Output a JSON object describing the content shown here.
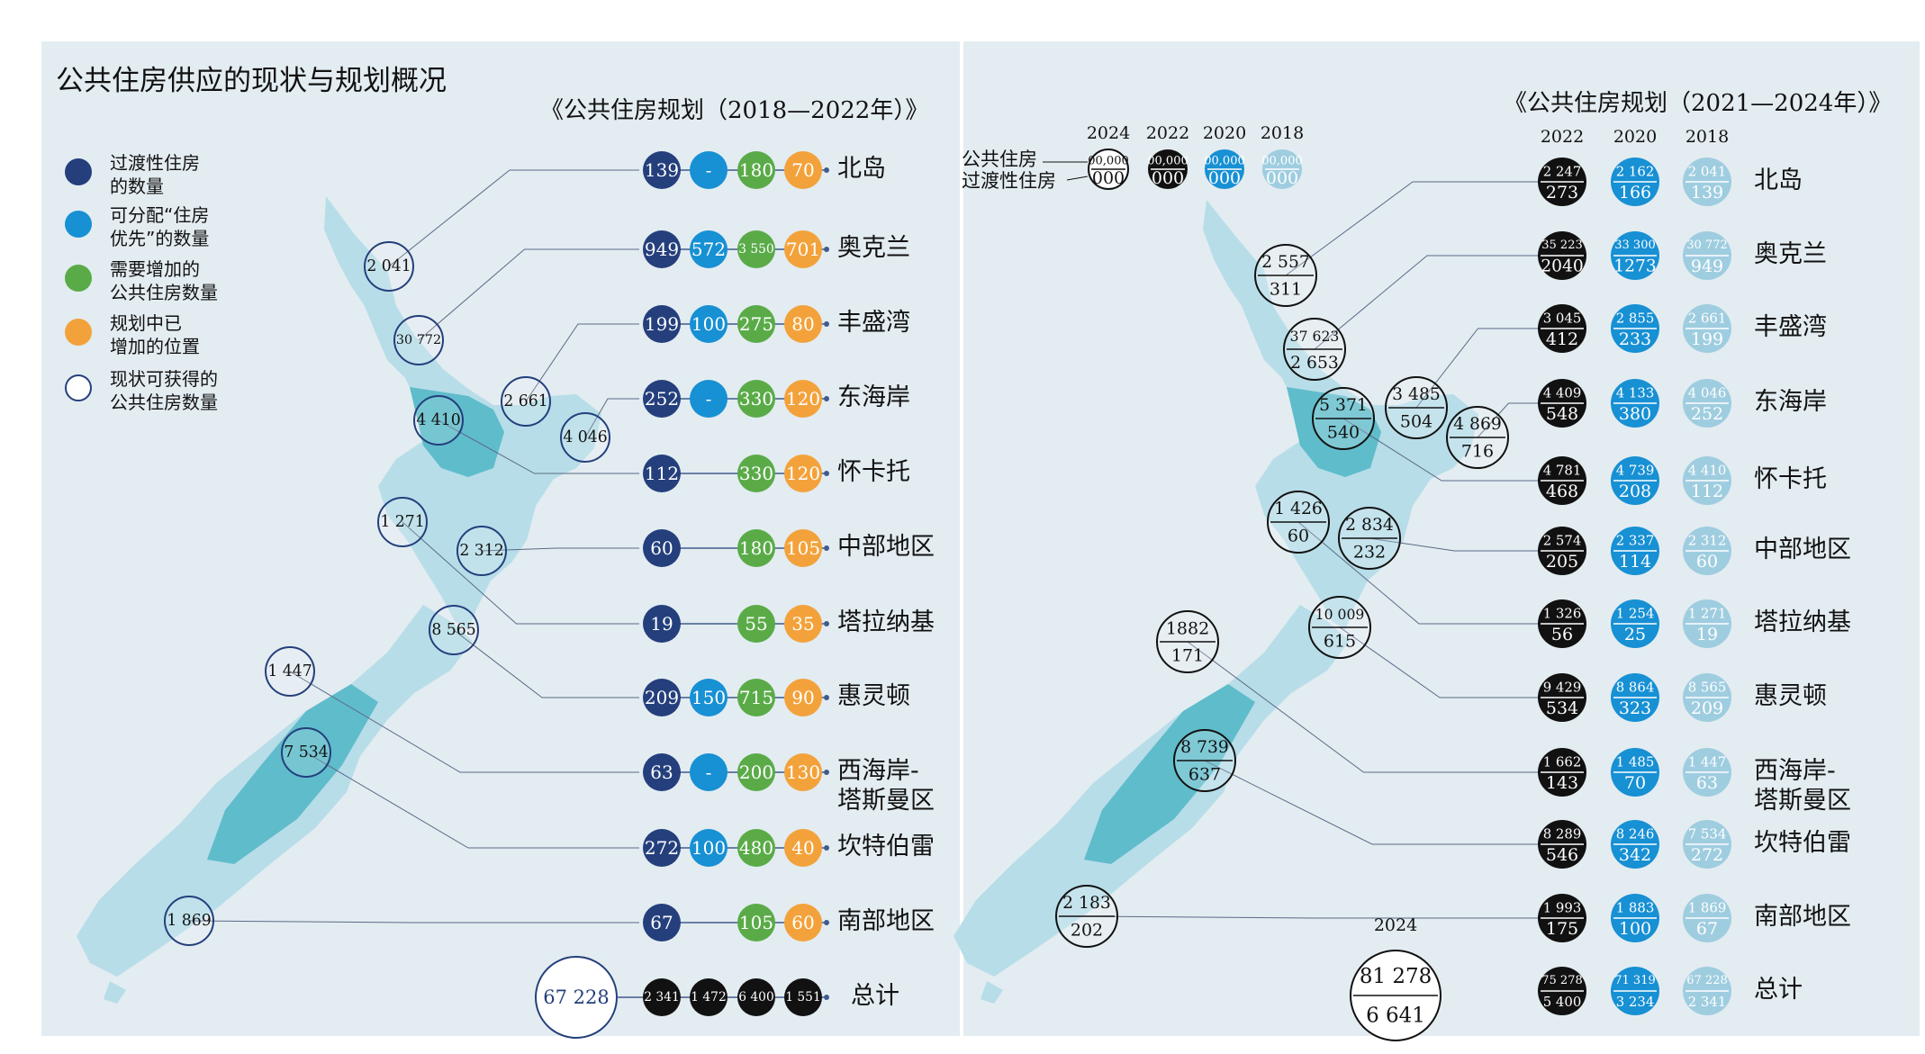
{
  "title": "公共住房供应的现状与规划概况",
  "colors": {
    "transitional": "#243f7c",
    "priority": "#1790d4",
    "needed": "#5aab48",
    "planned": "#f3a23b",
    "current_ring": "#243f7c",
    "black": "#111111",
    "light_blue": "#9fcde0",
    "map_light": "#b7dde8",
    "map_dark": "#5fbccb"
  },
  "legend": [
    {
      "label": "过渡性住房\n的数量",
      "color": "#243f7c",
      "style": "filled"
    },
    {
      "label": "可分配“住房\n优先”的数量",
      "color": "#1790d4",
      "style": "filled"
    },
    {
      "label": "需要增加的\n公共住房数量",
      "color": "#5aab48",
      "style": "filled"
    },
    {
      "label": "规划中已\n增加的位置",
      "color": "#f3a23b",
      "style": "filled"
    },
    {
      "label": "现状可获得的\n公共住房数量",
      "color": "#243f7c",
      "style": "ring"
    }
  ],
  "right_legend": {
    "row1": "公共住房",
    "row2": "过渡性住房",
    "years": [
      "2024",
      "2022",
      "2020",
      "2018"
    ],
    "placeholder_top": "00,000",
    "placeholder_bottom": "000"
  },
  "chart_data": [
    {
      "type": "table",
      "title": "《公共住房规划（2018—2022年）》",
      "columns": [
        "过渡性住房的数量",
        "可分配“住房优先”的数量",
        "需要增加的公共住房数量",
        "规划中已增加的位置",
        "现状可获得的公共住房数量"
      ],
      "rows": [
        {
          "region": "北岛",
          "transitional": "139",
          "priority": "-",
          "needed": "180",
          "planned": "70",
          "current": "2 041"
        },
        {
          "region": "奥克兰",
          "transitional": "949",
          "priority": "572",
          "needed": "3 550",
          "planned": "701",
          "current": "30 772"
        },
        {
          "region": "丰盛湾",
          "transitional": "199",
          "priority": "100",
          "needed": "275",
          "planned": "80",
          "current": "2 661"
        },
        {
          "region": "东海岸",
          "transitional": "252",
          "priority": "-",
          "needed": "330",
          "planned": "120",
          "current": "4 046"
        },
        {
          "region": "怀卡托",
          "transitional": "112",
          "priority": "",
          "needed": "330",
          "planned": "120",
          "current": "4 410"
        },
        {
          "region": "中部地区",
          "transitional": "60",
          "priority": "",
          "needed": "180",
          "planned": "105",
          "current": "2 312"
        },
        {
          "region": "塔拉纳基",
          "transitional": "19",
          "priority": "",
          "needed": "55",
          "planned": "35",
          "current": "1 271"
        },
        {
          "region": "惠灵顿",
          "transitional": "209",
          "priority": "150",
          "needed": "715",
          "planned": "90",
          "current": "8 565"
        },
        {
          "region": "西海岸-\n塔斯曼区",
          "transitional": "63",
          "priority": "-",
          "needed": "200",
          "planned": "130",
          "current": "1 447"
        },
        {
          "region": "坎特伯雷",
          "transitional": "272",
          "priority": "100",
          "needed": "480",
          "planned": "40",
          "current": "7 534"
        },
        {
          "region": "南部地区",
          "transitional": "67",
          "priority": "",
          "needed": "105",
          "planned": "60",
          "current": "1 869"
        },
        {
          "region": "总计",
          "transitional": "2 341",
          "priority": "1 472",
          "needed": "6 400",
          "planned": "1 551",
          "current": "67 228"
        }
      ]
    },
    {
      "type": "table",
      "title": "《公共住房规划（2021—2024年）》",
      "columns": [
        "2024",
        "2022",
        "2020",
        "2018"
      ],
      "rows": [
        {
          "region": "北岛",
          "y2024": [
            "2 557",
            "311"
          ],
          "y2022": [
            "2 247",
            "273"
          ],
          "y2020": [
            "2 162",
            "166"
          ],
          "y2018": [
            "2 041",
            "139"
          ]
        },
        {
          "region": "奥克兰",
          "y2024": [
            "37 623",
            "2 653"
          ],
          "y2022": [
            "35 223",
            "2040"
          ],
          "y2020": [
            "33 300",
            "1273"
          ],
          "y2018": [
            "30 772",
            "949"
          ]
        },
        {
          "region": "丰盛湾",
          "y2024": [
            "3 485",
            "504"
          ],
          "y2022": [
            "3 045",
            "412"
          ],
          "y2020": [
            "2 855",
            "233"
          ],
          "y2018": [
            "2 661",
            "199"
          ]
        },
        {
          "region": "东海岸",
          "y2024": [
            "4 869",
            "716"
          ],
          "y2022": [
            "4 409",
            "548"
          ],
          "y2020": [
            "4 133",
            "380"
          ],
          "y2018": [
            "4 046",
            "252"
          ]
        },
        {
          "region": "怀卡托",
          "y2024": [
            "5 371",
            "540"
          ],
          "y2022": [
            "4 781",
            "468"
          ],
          "y2020": [
            "4 739",
            "208"
          ],
          "y2018": [
            "4 410",
            "112"
          ]
        },
        {
          "region": "中部地区",
          "y2024": [
            "2 834",
            "232"
          ],
          "y2022": [
            "2 574",
            "205"
          ],
          "y2020": [
            "2 337",
            "114"
          ],
          "y2018": [
            "2 312",
            "60"
          ]
        },
        {
          "region": "塔拉纳基",
          "y2024": [
            "1 426",
            "60"
          ],
          "y2022": [
            "1 326",
            "56"
          ],
          "y2020": [
            "1 254",
            "25"
          ],
          "y2018": [
            "1 271",
            "19"
          ]
        },
        {
          "region": "惠灵顿",
          "y2024": [
            "10 009",
            "615"
          ],
          "y2022": [
            "9 429",
            "534"
          ],
          "y2020": [
            "8 864",
            "323"
          ],
          "y2018": [
            "8 565",
            "209"
          ]
        },
        {
          "region": "西海岸-\n塔斯曼区",
          "y2024": [
            "1882",
            "171"
          ],
          "y2022": [
            "1 662",
            "143"
          ],
          "y2020": [
            "1 485",
            "70"
          ],
          "y2018": [
            "1 447",
            "63"
          ]
        },
        {
          "region": "坎特伯雷",
          "y2024": [
            "8 739",
            "637"
          ],
          "y2022": [
            "8 289",
            "546"
          ],
          "y2020": [
            "8 246",
            "342"
          ],
          "y2018": [
            "7 534",
            "272"
          ]
        },
        {
          "region": "南部地区",
          "y2024": [
            "2 183",
            "202"
          ],
          "y2022": [
            "1 993",
            "175"
          ],
          "y2020": [
            "1 883",
            "100"
          ],
          "y2018": [
            "1 869",
            "67"
          ]
        },
        {
          "region": "总计",
          "y2024": [
            "81 278",
            "6 641"
          ],
          "y2022": [
            "75 278",
            "5 400"
          ],
          "y2020": [
            "71 319",
            "3 234"
          ],
          "y2018": [
            "67 228",
            "2 341"
          ]
        }
      ],
      "total_year_label": "2024"
    }
  ]
}
